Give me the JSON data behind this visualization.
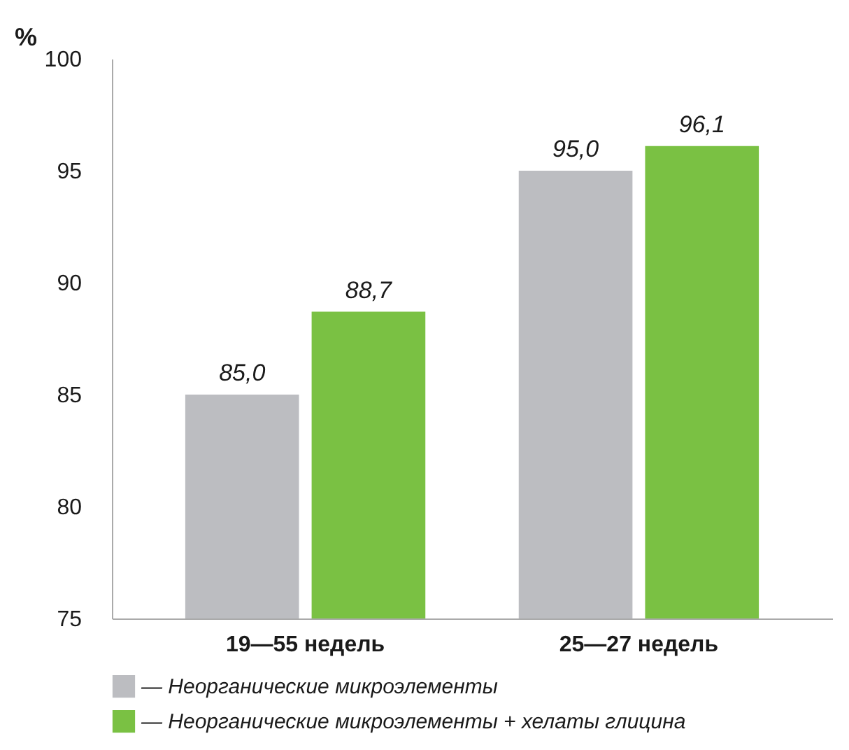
{
  "chart_data": {
    "type": "bar",
    "ylabel": "%",
    "categories": [
      "19—55 недель",
      "25—27 недель"
    ],
    "series": [
      {
        "name": "— Неорганические микроэлементы",
        "color": "#bcbdc1",
        "values": [
          85.0,
          95.0
        ],
        "value_labels": [
          "85,0",
          "95,0"
        ]
      },
      {
        "name": "— Неорганические микроэлементы + хелаты глицина",
        "color": "#7ac143",
        "values": [
          88.7,
          96.1
        ],
        "value_labels": [
          "88,7",
          "96,1"
        ]
      }
    ],
    "ylim": [
      75,
      100
    ],
    "yticks": [
      75,
      80,
      85,
      90,
      95,
      100
    ],
    "grid": false,
    "legend": "bottom"
  }
}
